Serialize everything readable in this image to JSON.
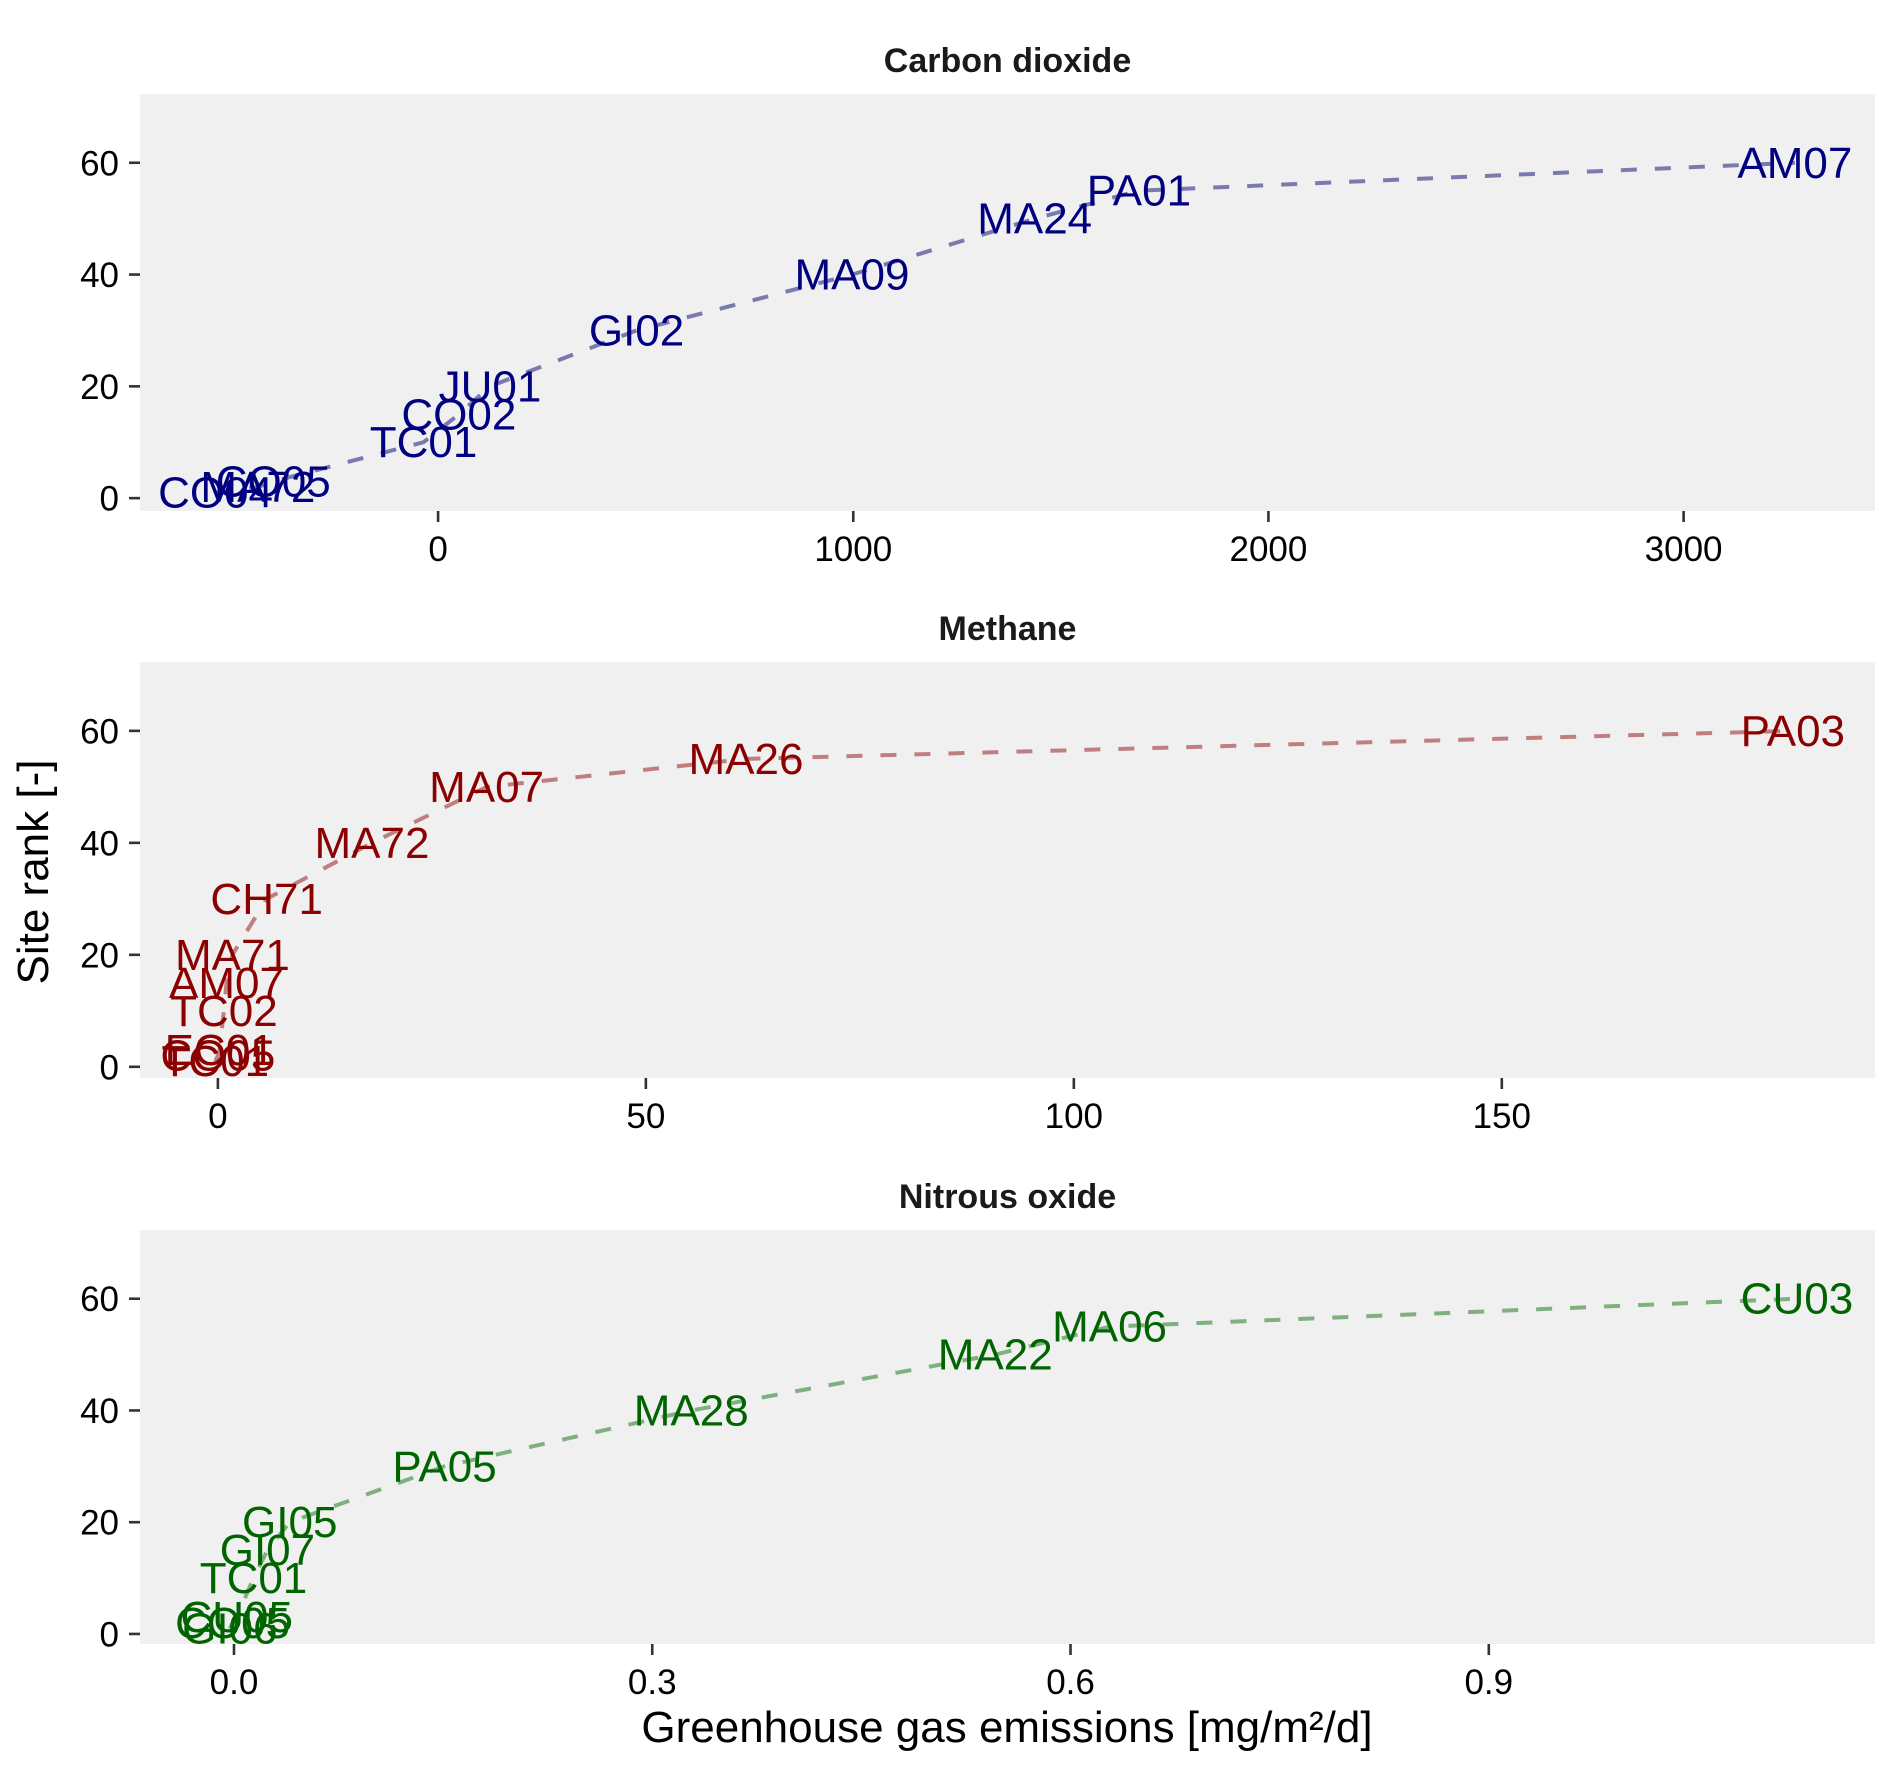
{
  "chart_data": {
    "type": "line",
    "layout": "3 vertically stacked facets with shared y axis title and shared x axis title",
    "xlabel": "Greenhouse gas emissions [mg/m²/d]",
    "ylabel": "Site rank [-]",
    "grid": false,
    "legend": "none",
    "panels": [
      {
        "title": "Carbon dioxide",
        "color": "#000080",
        "line_color": "#7a7ab0",
        "xlim": [
          -718,
          3461
        ],
        "ylim": [
          -2.3,
          72.3
        ],
        "xticks": [
          0,
          1000,
          2000,
          3000
        ],
        "xtick_labels": [
          "0",
          "1000",
          "2000",
          "3000"
        ],
        "yticks": [
          0,
          20,
          40,
          60
        ],
        "ytick_labels": [
          "0",
          "20",
          "40",
          "60"
        ],
        "points": [
          {
            "label": "CO04",
            "x": -536,
            "y": 1
          },
          {
            "label": "MA72",
            "x": -434,
            "y": 2
          },
          {
            "label": "CO05",
            "x": -397,
            "y": 3
          },
          {
            "label": "TC01",
            "x": -35,
            "y": 10
          },
          {
            "label": "CO02",
            "x": 50,
            "y": 15
          },
          {
            "label": "JU01",
            "x": 125,
            "y": 20
          },
          {
            "label": "GI02",
            "x": 478,
            "y": 30
          },
          {
            "label": "MA09",
            "x": 997,
            "y": 40
          },
          {
            "label": "MA24",
            "x": 1437,
            "y": 50
          },
          {
            "label": "PA01",
            "x": 1688,
            "y": 55
          },
          {
            "label": "AM07",
            "x": 3268,
            "y": 60
          }
        ]
      },
      {
        "title": "Methane",
        "color": "#8b0000",
        "line_color": "#bf7f7f",
        "xlim": [
          -9.1,
          193.6
        ],
        "ylim": [
          -2.0,
          72.3
        ],
        "xticks": [
          0,
          50,
          100,
          150
        ],
        "xtick_labels": [
          "0",
          "50",
          "100",
          "150"
        ],
        "yticks": [
          0,
          20,
          40,
          60
        ],
        "ytick_labels": [
          "0",
          "20",
          "40",
          "60"
        ],
        "points": [
          {
            "label": "TC01",
            "x": -0.3,
            "y": 1
          },
          {
            "label": "CO05",
            "x": 0.0,
            "y": 2
          },
          {
            "label": "EC01",
            "x": 0.2,
            "y": 3
          },
          {
            "label": "TC02",
            "x": 0.7,
            "y": 10
          },
          {
            "label": "AM07",
            "x": 1.0,
            "y": 15
          },
          {
            "label": "MA71",
            "x": 1.7,
            "y": 20
          },
          {
            "label": "CH71",
            "x": 5.7,
            "y": 30
          },
          {
            "label": "MA72",
            "x": 18.0,
            "y": 40
          },
          {
            "label": "MA07",
            "x": 31.4,
            "y": 50
          },
          {
            "label": "MA26",
            "x": 61.7,
            "y": 55
          },
          {
            "label": "PA03",
            "x": 184.0,
            "y": 60
          }
        ]
      },
      {
        "title": "Nitrous oxide",
        "color": "#006400",
        "line_color": "#7fb07f",
        "xlim": [
          -0.0674,
          1.177
        ],
        "ylim": [
          -1.8,
          72.3
        ],
        "xticks": [
          0.0,
          0.3,
          0.6,
          0.9
        ],
        "xtick_labels": [
          "0.0",
          "0.3",
          "0.6",
          "0.9"
        ],
        "yticks": [
          0,
          20,
          40,
          60
        ],
        "ytick_labels": [
          "0",
          "20",
          "40",
          "60"
        ],
        "points": [
          {
            "label": "GI06",
            "x": -0.003,
            "y": 1
          },
          {
            "label": "CO05",
            "x": -0.001,
            "y": 2
          },
          {
            "label": "CU05",
            "x": 0.002,
            "y": 3
          },
          {
            "label": "TC01",
            "x": 0.014,
            "y": 10
          },
          {
            "label": "GI07",
            "x": 0.024,
            "y": 15
          },
          {
            "label": "GI05",
            "x": 0.04,
            "y": 20
          },
          {
            "label": "PA05",
            "x": 0.151,
            "y": 30
          },
          {
            "label": "MA28",
            "x": 0.328,
            "y": 40
          },
          {
            "label": "MA22",
            "x": 0.546,
            "y": 50
          },
          {
            "label": "MA06",
            "x": 0.628,
            "y": 55
          },
          {
            "label": "CU03",
            "x": 1.121,
            "y": 60
          }
        ]
      }
    ]
  }
}
